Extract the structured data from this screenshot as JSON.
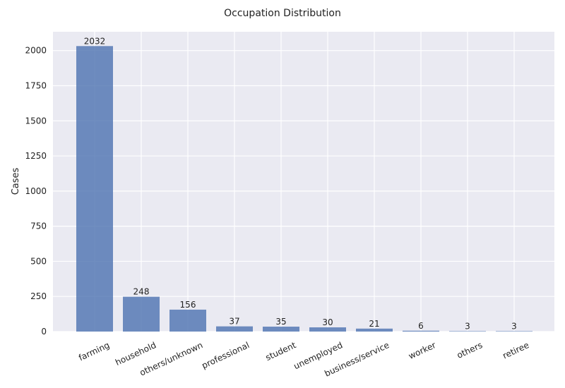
{
  "chart_data": {
    "type": "bar",
    "title": "Occupation Distribution",
    "xlabel": "",
    "ylabel": "Cases",
    "categories": [
      "farming",
      "household",
      "others/unknown",
      "professional",
      "student",
      "unemployed",
      "business/service",
      "worker",
      "others",
      "retiree"
    ],
    "values": [
      2032,
      248,
      156,
      37,
      35,
      30,
      21,
      6,
      3,
      3
    ],
    "data_labels": [
      "2032",
      "248",
      "156",
      "37",
      "35",
      "30",
      "21",
      "6",
      "3",
      "3"
    ],
    "yticks": [
      0,
      250,
      500,
      750,
      1000,
      1250,
      1500,
      1750,
      2000
    ],
    "ylim": [
      0,
      2134
    ],
    "grid": true,
    "colors": {
      "bar": "#4c72b0",
      "plot_bg": "#eaeaf2",
      "grid": "#ffffff"
    }
  }
}
